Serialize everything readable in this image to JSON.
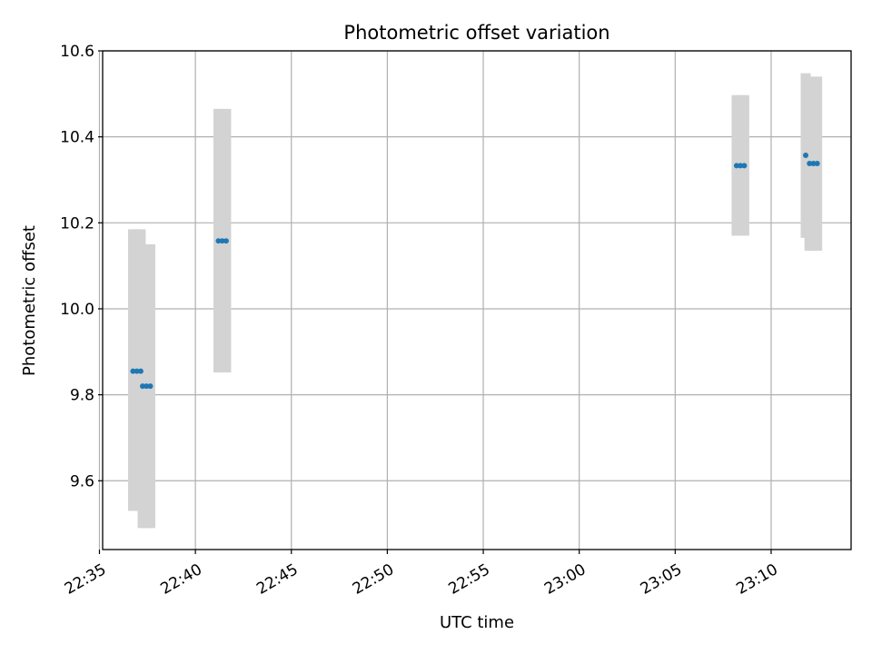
{
  "chart_data": {
    "type": "scatter",
    "title": "Photometric offset variation",
    "xlabel": "UTC time",
    "ylabel": "Photometric offset",
    "x_axis_type": "time",
    "xlim": [
      "22:35:10",
      "23:14:10"
    ],
    "ylim": [
      9.44,
      10.6
    ],
    "x_ticks": [
      "22:35",
      "22:40",
      "22:45",
      "22:50",
      "22:55",
      "23:00",
      "23:05",
      "23:10"
    ],
    "y_ticks": [
      9.6,
      9.8,
      10.0,
      10.2,
      10.4,
      10.6
    ],
    "y_tick_labels": [
      "9.6",
      "9.8",
      "10.0",
      "10.2",
      "10.4",
      "10.6"
    ],
    "grid": true,
    "legend": false,
    "colors": {
      "points": "#1f77b4",
      "error_band": "#d3d3d3",
      "grid": "#b0b0b0",
      "axes": "#000000"
    },
    "points": [
      {
        "time": "22:36:45",
        "y": 9.855,
        "ylow": 9.53,
        "yhigh": 10.185
      },
      {
        "time": "22:36:57",
        "y": 9.855,
        "ylow": 9.53,
        "yhigh": 10.185
      },
      {
        "time": "22:37:09",
        "y": 9.855,
        "ylow": 9.53,
        "yhigh": 10.185
      },
      {
        "time": "22:37:15",
        "y": 9.82,
        "ylow": 9.49,
        "yhigh": 10.15
      },
      {
        "time": "22:37:27",
        "y": 9.82,
        "ylow": 9.49,
        "yhigh": 10.15
      },
      {
        "time": "22:37:39",
        "y": 9.82,
        "ylow": 9.49,
        "yhigh": 10.15
      },
      {
        "time": "22:41:12",
        "y": 10.158,
        "ylow": 9.852,
        "yhigh": 10.465
      },
      {
        "time": "22:41:24",
        "y": 10.158,
        "ylow": 9.852,
        "yhigh": 10.465
      },
      {
        "time": "22:41:36",
        "y": 10.158,
        "ylow": 9.852,
        "yhigh": 10.465
      },
      {
        "time": "23:08:12",
        "y": 10.333,
        "ylow": 10.17,
        "yhigh": 10.497
      },
      {
        "time": "23:08:24",
        "y": 10.333,
        "ylow": 10.17,
        "yhigh": 10.497
      },
      {
        "time": "23:08:36",
        "y": 10.333,
        "ylow": 10.17,
        "yhigh": 10.497
      },
      {
        "time": "23:11:48",
        "y": 10.357,
        "ylow": 10.165,
        "yhigh": 10.548
      },
      {
        "time": "23:12:00",
        "y": 10.338,
        "ylow": 10.135,
        "yhigh": 10.54
      },
      {
        "time": "23:12:12",
        "y": 10.338,
        "ylow": 10.135,
        "yhigh": 10.54
      },
      {
        "time": "23:12:24",
        "y": 10.338,
        "ylow": 10.135,
        "yhigh": 10.54
      }
    ]
  }
}
